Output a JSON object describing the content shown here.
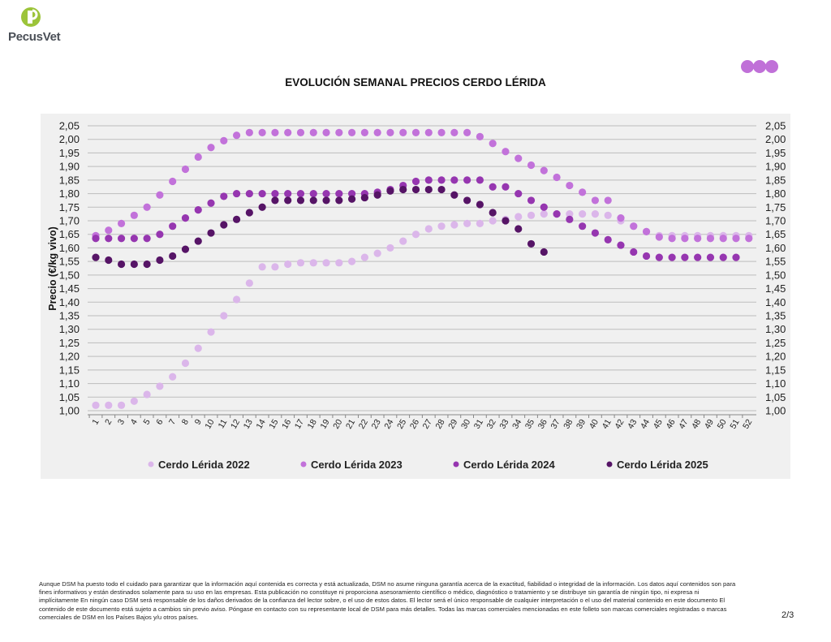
{
  "header": {
    "logo_text": "PecusVet",
    "logo_letter": "P"
  },
  "footer": {
    "lines": [
      "Aunque DSM ha puesto todo el cuidado para garantizar que la información aquí contenida es correcta y está actualizada, DSM no asume ninguna garantía acerca de la exactitud, fiabilidad o integridad de la información. Los datos aquí contenidos son para",
      "fines informativos y están destinados solamente para su uso en las empresas. Esta publicación no constituye ni proporciona asesoramiento científico o médico, diagnóstico o tratamiento y se distribuye sin garantía de ningún tipo, ni expresa ni",
      "implícitamente En ningún caso DSM será responsable de los daños derivados de la confianza del lector sobre, o el uso de estos datos. El lector será el único responsable de cualquier interpretación o el uso del material contenido en este documento El",
      "contenido de este documento está sujeto a cambios sin previo aviso. Póngase en contacto con su representante local de DSM para más detalles. Todas las marcas comerciales mencionadas en este folleto son marcas comerciales registradas o marcas",
      "comerciales de DSM en los Países Bajos y/u otros países."
    ],
    "page": "2/3"
  },
  "colors": {
    "logo_green": "#9cc43a",
    "decor_dots": "#c070d8",
    "panel": "#f0f0f0",
    "grid": "#bdbdbd"
  },
  "chart_data": {
    "type": "scatter",
    "title": "EVOLUCIÓN SEMANAL PRECIOS CERDO LÉRIDA",
    "xlabel": "",
    "ylabel": "Precio (€/kg vivo)",
    "ylim": [
      1.0,
      2.05
    ],
    "ytick_step": 0.05,
    "grid": true,
    "legend_position": "bottom",
    "x": [
      1,
      2,
      3,
      4,
      5,
      6,
      7,
      8,
      9,
      10,
      11,
      12,
      13,
      14,
      15,
      16,
      17,
      18,
      19,
      20,
      21,
      22,
      23,
      24,
      25,
      26,
      27,
      28,
      29,
      30,
      31,
      32,
      33,
      34,
      35,
      36,
      37,
      38,
      39,
      40,
      41,
      42,
      43,
      44,
      45,
      46,
      47,
      48,
      49,
      50,
      51,
      52
    ],
    "series": [
      {
        "name": "Cerdo Lérida 2022",
        "color": "#dbb6ea",
        "values": [
          1.02,
          1.02,
          1.02,
          1.035,
          1.06,
          1.09,
          1.125,
          1.175,
          1.23,
          1.29,
          1.35,
          1.41,
          1.47,
          1.53,
          1.53,
          1.54,
          1.545,
          1.545,
          1.545,
          1.545,
          1.55,
          1.565,
          1.58,
          1.6,
          1.625,
          1.65,
          1.67,
          1.68,
          1.685,
          1.69,
          1.69,
          1.7,
          1.705,
          1.715,
          1.72,
          1.725,
          1.725,
          1.725,
          1.725,
          1.725,
          1.72,
          1.7,
          1.68,
          1.66,
          1.645,
          1.645,
          1.645,
          1.645,
          1.645,
          1.645,
          1.645,
          1.645
        ]
      },
      {
        "name": "Cerdo Lérida 2023",
        "color": "#c272da",
        "values": [
          1.645,
          1.665,
          1.69,
          1.72,
          1.75,
          1.795,
          1.845,
          1.89,
          1.935,
          1.97,
          1.995,
          2.015,
          2.025,
          2.025,
          2.025,
          2.025,
          2.025,
          2.025,
          2.025,
          2.025,
          2.025,
          2.025,
          2.025,
          2.025,
          2.025,
          2.025,
          2.025,
          2.025,
          2.025,
          2.025,
          2.01,
          1.985,
          1.955,
          1.93,
          1.905,
          1.885,
          1.86,
          1.83,
          1.805,
          1.775,
          1.775,
          1.71,
          1.68,
          1.66,
          1.64,
          1.635,
          1.635,
          1.635,
          1.635,
          1.635,
          1.635,
          1.635
        ]
      },
      {
        "name": "Cerdo Lérida 2024",
        "color": "#9636b0",
        "values": [
          1.635,
          1.635,
          1.635,
          1.635,
          1.635,
          1.65,
          1.68,
          1.71,
          1.74,
          1.765,
          1.79,
          1.8,
          1.8,
          1.8,
          1.8,
          1.8,
          1.8,
          1.8,
          1.8,
          1.8,
          1.8,
          1.8,
          1.805,
          1.815,
          1.83,
          1.845,
          1.85,
          1.85,
          1.85,
          1.85,
          1.85,
          1.825,
          1.825,
          1.8,
          1.775,
          1.75,
          1.725,
          1.705,
          1.68,
          1.655,
          1.63,
          1.61,
          1.585,
          1.57,
          1.565,
          1.565,
          1.565,
          1.565,
          1.565,
          1.565,
          1.565,
          null
        ]
      },
      {
        "name": "Cerdo Lérida 2025",
        "color": "#561466",
        "values": [
          1.565,
          1.555,
          1.54,
          1.54,
          1.54,
          1.555,
          1.57,
          1.595,
          1.625,
          1.655,
          1.685,
          1.705,
          1.73,
          1.75,
          1.775,
          1.775,
          1.775,
          1.775,
          1.775,
          1.775,
          1.78,
          1.785,
          1.795,
          1.81,
          1.815,
          1.815,
          1.815,
          1.815,
          1.795,
          1.775,
          1.76,
          1.73,
          1.7,
          1.67,
          1.615,
          1.585,
          null,
          null,
          null,
          null,
          null,
          null,
          null,
          null,
          null,
          null,
          null,
          null,
          null,
          null,
          null,
          null
        ]
      }
    ]
  }
}
